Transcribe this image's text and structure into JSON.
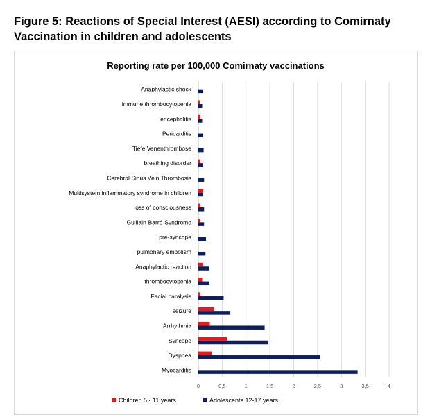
{
  "figure_title": "Figure 5: Reactions of Special Interest (AESI) according to Comirnaty Vaccination in children and adolescents",
  "colors": {
    "children": "#e41a1c",
    "adolescents": "#0c1f5c",
    "grid": "#d9d9d9"
  },
  "chart_data": {
    "type": "bar",
    "orientation": "horizontal",
    "title": "Reporting rate per 100,000 Comirnaty vaccinations",
    "categories": [
      "Anaphylactic shock",
      "immune thrombocytopenia",
      "encephalitis",
      "Pericarditis",
      "Tiefe Venenthrombose",
      "breathing disorder",
      "Cerebral Sinus Vein Thrombosis",
      "Multisystem inflammatory syndrome in children",
      "loss of consciousness",
      "Guillain-Barré-Syndrome",
      "pre-syncope",
      "pulmonary embolism",
      "Anaphylactic reaction",
      "thrombocytopenia",
      "Facial paralysis",
      "seizure",
      "Arrhythmia",
      "Syncope",
      "Dyspnea",
      "Myocarditis"
    ],
    "series": [
      {
        "name": "Children 5 - 11 years",
        "color": "#e41a1c",
        "values": [
          0,
          0.03,
          0.04,
          0,
          0,
          0.04,
          0,
          0.1,
          0.04,
          0.04,
          0,
          0,
          0.1,
          0.08,
          0.04,
          0.33,
          0.24,
          0.61,
          0.28,
          0
        ]
      },
      {
        "name": "Adolescents 12-17 years",
        "color": "#0c1f5c",
        "values": [
          0.1,
          0.08,
          0.08,
          0.1,
          0.11,
          0.09,
          0.12,
          0.09,
          0.12,
          0.12,
          0.16,
          0.15,
          0.23,
          0.23,
          0.53,
          0.67,
          1.39,
          1.47,
          2.56,
          3.34
        ]
      }
    ],
    "x_ticks": [
      "0",
      "0,5",
      "1",
      "1,5",
      "2",
      "2,5",
      "3",
      "3,5",
      "4"
    ],
    "xlim": [
      0,
      4
    ],
    "grid": true,
    "legend_position": "bottom"
  }
}
